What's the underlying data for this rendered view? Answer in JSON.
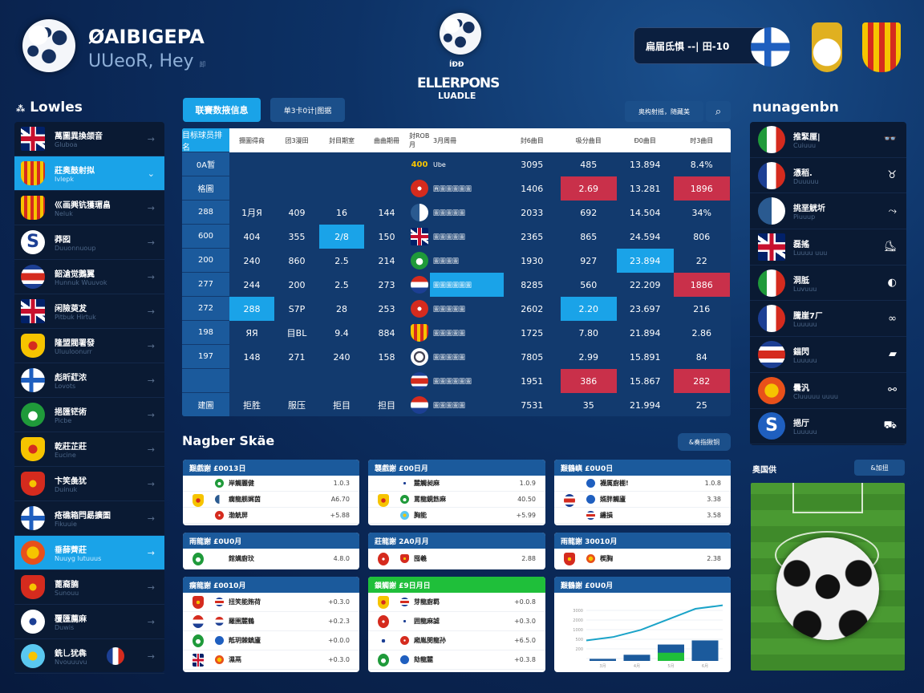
{
  "colors": {
    "accent": "#1aa3e8",
    "highlight_red": "#c9304a",
    "panel": "#0a1a33",
    "card_header": "#1b5a9c",
    "green": "#1fbf3a"
  },
  "brand": {
    "logo_icon": "soccer-ball-icon",
    "title": "ØAIBIGEPA",
    "subtitle": "UUeoR, Hey",
    "tag": "卸"
  },
  "league_logo": {
    "icon": "soccer-ball-icon",
    "line1": "ELLERPONS",
    "line2": "LUADLE",
    "badge": "ÍÐÐ"
  },
  "top_search": {
    "value": "扁届氐惧 --| 田-10",
    "flag": "finland"
  },
  "top_crests": [
    "crest-gold",
    "crest-catalan"
  ],
  "sidebar": {
    "title": "Lowles",
    "title_icon": "grid-icon",
    "items": [
      {
        "flag": "uk",
        "label": "萬圖異換颌音",
        "sub": "Gluboa"
      },
      {
        "flag": "catalan",
        "label": "莊奥鼓射拟",
        "sub": "Ivlepk",
        "active": true
      },
      {
        "flag": "catalan",
        "label": "巛画興钪獲瑂畠",
        "sub": "Neluk"
      },
      {
        "flag": "s",
        "label": "莽囮",
        "sub": "Duuonnuoup"
      },
      {
        "flag": "rwb",
        "label": "韶滄觉鵝翼",
        "sub": "Hunnuk Wuuvok"
      },
      {
        "flag": "uk",
        "label": "闲險萸犮",
        "sub": "Pitbuk Hirtuk"
      },
      {
        "flag": "yellow",
        "label": "隆盟閥署發",
        "sub": "Uluuloonurr"
      },
      {
        "flag": "finland",
        "label": "彪昕葒浓",
        "sub": "Lovots"
      },
      {
        "flag": "green",
        "label": "挹匯铓術",
        "sub": "Picbe"
      },
      {
        "flag": "yellow",
        "label": "乾莊芷莊",
        "sub": "Eucine"
      },
      {
        "flag": "red",
        "label": "卞笑彘犹",
        "sub": "Duinuk"
      },
      {
        "flag": "finland",
        "label": "疮礁箱閂勗擴圄",
        "sub": "Fikuuie"
      },
      {
        "flag": "orange",
        "label": "垂薛薺莊",
        "sub": "Nuuyg lutuuus",
        "active": true
      },
      {
        "flag": "red",
        "label": "蓖裔腩",
        "sub": "Sunouu"
      },
      {
        "flag": "ball",
        "label": "覆匯薦麻",
        "sub": "Duwis"
      },
      {
        "flag": "cyan",
        "label": "銑乚犹犇",
        "sub": "Nvouuuvu",
        "extra_flag": "france"
      }
    ]
  },
  "toolbar": {
    "primary": "联賽数掖信息",
    "secondary": "单3卡0计|图据",
    "search_placeholder": "奥构射摇，随藏美",
    "search_icon": "search-icon"
  },
  "table": {
    "headers": [
      "目标球员排名",
      "摄圖得商",
      "团3漫田",
      "封目期室",
      "曲曲期冊",
      "封ROB月",
      "3月周冊",
      "封6曲目",
      "吸分曲目",
      "Ð0曲目",
      "时3曲目"
    ],
    "rows": [
      {
        "rank": "0A暂",
        "c": [
          "",
          "",
          "",
          ""
        ],
        "badge": "400",
        "name": "Ube",
        "v": [
          "3095",
          "485",
          "13.894",
          "8.4%"
        ]
      },
      {
        "rank": "格圖",
        "c": [
          "",
          "",
          "",
          ""
        ],
        "flag": "redx",
        "name": "圓圖圖圖圖圖",
        "v": [
          "1406",
          "2.69",
          "13.281",
          "1896"
        ],
        "hl": {
          "v1": "red",
          "v3": "red"
        }
      },
      {
        "rank": "288",
        "c": [
          "1月Я",
          "409",
          "16",
          "144"
        ],
        "flag": "half",
        "name": "圖圖圖圖圖",
        "v": [
          "2033",
          "692",
          "14.504",
          "34%"
        ]
      },
      {
        "rank": "600",
        "c": [
          "404",
          "355",
          "2/8",
          "150"
        ],
        "flag": "uk",
        "name": "圖圖圖圖圖",
        "v": [
          "2365",
          "865",
          "24.594",
          "806"
        ],
        "hl": {
          "c2": "blue"
        }
      },
      {
        "rank": "200",
        "c": [
          "240",
          "860",
          "2.5",
          "214"
        ],
        "flag": "green",
        "name": "圖圖圖圖",
        "v": [
          "1930",
          "927",
          "23.894",
          "22"
        ],
        "hl": {
          "v2": "blue"
        }
      },
      {
        "rank": "277",
        "c": [
          "244",
          "200",
          "2.5",
          "273"
        ],
        "flag": "nl",
        "name": "圖圖圖圖圖圖",
        "v": [
          "8285",
          "560",
          "22.209",
          "1886"
        ],
        "hl": {
          "name": "blue",
          "v3": "red"
        }
      },
      {
        "rank": "272",
        "c": [
          "288",
          "S7P",
          "28",
          "253"
        ],
        "flag": "redx",
        "name": "圖圖圖圖圖",
        "v": [
          "2602",
          "2.20",
          "23.697",
          "216"
        ],
        "hl": {
          "c0": "blue",
          "v1": "blue"
        }
      },
      {
        "rank": "198",
        "c": [
          "ЯЯ",
          "目BL",
          "9.4",
          "884"
        ],
        "flag": "catalan",
        "name": "圖圖圖圖圖",
        "v": [
          "1725",
          "7.80",
          "21.894",
          "2.86"
        ]
      },
      {
        "rank": "197",
        "c": [
          "148",
          "271",
          "240",
          "158"
        ],
        "flag": "ring",
        "name": "圖圖圖圖圖",
        "v": [
          "7805",
          "2.99",
          "15.891",
          "84"
        ]
      },
      {
        "rank": "",
        "c": [
          "",
          "",
          "",
          ""
        ],
        "flag": "rwb",
        "name": "圖圖圖圖圖圖",
        "v": [
          "1951",
          "386",
          "15.867",
          "282"
        ],
        "hl": {
          "v1": "red",
          "v3": "red"
        }
      },
      {
        "rank": "建圖",
        "c": [
          "拒胜",
          "服压",
          "拒目",
          "担目"
        ],
        "flag": "nl",
        "name": "圖圖圖圖圖",
        "v": [
          "7531",
          "35",
          "21.994",
          "25"
        ]
      }
    ]
  },
  "right_panel": {
    "title": "nunagenbn",
    "items": [
      {
        "flag": "italy",
        "label": "推緊厘|",
        "sub": "Cuiuuu",
        "icon": "binoculars-icon",
        "glyph": "👓"
      },
      {
        "flag": "france",
        "label": "憑稻.",
        "sub": "Duuuuu",
        "icon": "trophy-icon",
        "glyph": "♉"
      },
      {
        "flag": "half",
        "label": "挑垩觥圻",
        "sub": "Piuuup",
        "icon": "whistle-icon",
        "glyph": "⤳"
      },
      {
        "flag": "uk",
        "label": "磊搖",
        "sub": "Luuuu uuu",
        "icon": "boot-icon",
        "glyph": "⛸"
      },
      {
        "flag": "italy",
        "label": "洞胝",
        "sub": "Luvuuu",
        "icon": "helmet-icon",
        "glyph": "◐"
      },
      {
        "flag": "france",
        "label": "騰崖7ㄏ",
        "sub": "Luuuuu",
        "icon": "binoculars-icon",
        "glyph": "∞"
      },
      {
        "flag": "rwb",
        "label": "錨閃",
        "sub": "Luuuuu",
        "icon": "car-icon",
        "glyph": "▰"
      },
      {
        "flag": "orange",
        "label": "曇汎",
        "sub": "Cluuuuu uuuu",
        "icon": "link-icon",
        "glyph": "⚯"
      },
      {
        "flag": "s-blue",
        "label": "挹厅",
        "sub": "Luuuuu",
        "icon": "car-icon",
        "glyph": "⛟"
      }
    ]
  },
  "schedule": {
    "title": "Nagber Skäe",
    "button": "&奏指揪铜",
    "cards": [
      {
        "header": "艱戲謝 £0013日",
        "rows": [
          [
            "f-green",
            "岸觸麗健",
            "1.0.3"
          ],
          [
            "f-half",
            "瘸龍舰娓茵",
            "A6.70"
          ],
          [
            "f-redx",
            "渤觥屏",
            "+5.88"
          ]
        ],
        "lead": "f-yellow"
      },
      {
        "header": "襲戲謝 £00日月",
        "rows": [
          [
            "f-ball",
            "麓觸昶麻",
            "1.0.9"
          ],
          [
            "f-green",
            "罵龍鏡飭麻",
            "40.50"
          ],
          [
            "f-cyan",
            "胸能",
            "+5.99"
          ]
        ],
        "lead": "f-yellow"
      },
      {
        "header": "艱鶴嶼 £0U0日",
        "rows": [
          [
            "f-s-blue",
            "襪厲廚棚!",
            "1.0.8"
          ],
          [
            "f-s-blue",
            "婿胖觸廬",
            "3.38"
          ],
          [
            "f-rwb",
            "纏損",
            "3.58"
          ]
        ],
        "lead": "f-rwb"
      },
      {
        "header": "雨龍謝 £0U0月",
        "rows": [
          [
            "f-s",
            "館媾廚玟",
            "4.8.0"
          ]
        ],
        "lead": "f-green"
      },
      {
        "header": "莊龍謝 2A0月月",
        "rows": [
          [
            "f-red",
            "囤羲",
            "2.88"
          ]
        ],
        "lead": "f-redx"
      },
      {
        "header": "雨龍謝 30010月",
        "rows": [
          [
            "f-orange",
            "楔胸",
            "2.38"
          ]
        ],
        "lead": "f-red"
      },
      {
        "header": "瘸龍謝 £0010月",
        "rows": [
          [
            "f-rwb",
            "扭笑能賄荷",
            "+0.3.0"
          ],
          [
            "f-nl",
            "羅圉麓鶴",
            "+0.2.3"
          ],
          [
            "f-s-blue",
            "羝玥棘鎮廬",
            "+0.0.0"
          ],
          [
            "f-orange",
            "濕鬲",
            "+0.3.0"
          ]
        ],
        "leads": [
          "f-red",
          "f-nl",
          "f-green",
          "f-uk"
        ]
      },
      {
        "header": "鎖觸謝 £9日月日",
        "green": true,
        "rows": [
          [
            "f-rwb",
            "芽龍廚羁",
            "+0.0.8"
          ],
          [
            "f-ball",
            "囲龍麻謔",
            "+0.3.0"
          ],
          [
            "f-redx",
            "廂胤閔龍孙",
            "+6.5.0"
          ],
          [
            "f-s-blue",
            "劾龍麓",
            "+0.3.8"
          ]
        ],
        "leads": [
          "f-yellow",
          "f-redx",
          "f-ball",
          "f-green"
        ]
      }
    ]
  },
  "chart_card": {
    "header": "艱鶴謝 £0U0月",
    "chart_data": {
      "type": "bar",
      "categories": [
        "3月",
        "4月",
        "5月",
        "6月"
      ],
      "values": [
        1,
        3,
        8,
        10
      ],
      "green_portion": [
        0,
        0,
        4,
        0
      ],
      "trend_line": [
        0,
        1,
        3,
        6,
        9,
        10
      ],
      "ytick_labels": [
        "3000",
        "2000",
        "1000",
        "500",
        "200",
        ""
      ]
    }
  },
  "pitch": {
    "label": "奥国供",
    "button": "&加扭",
    "image": "soccer-ball-on-pitch"
  }
}
